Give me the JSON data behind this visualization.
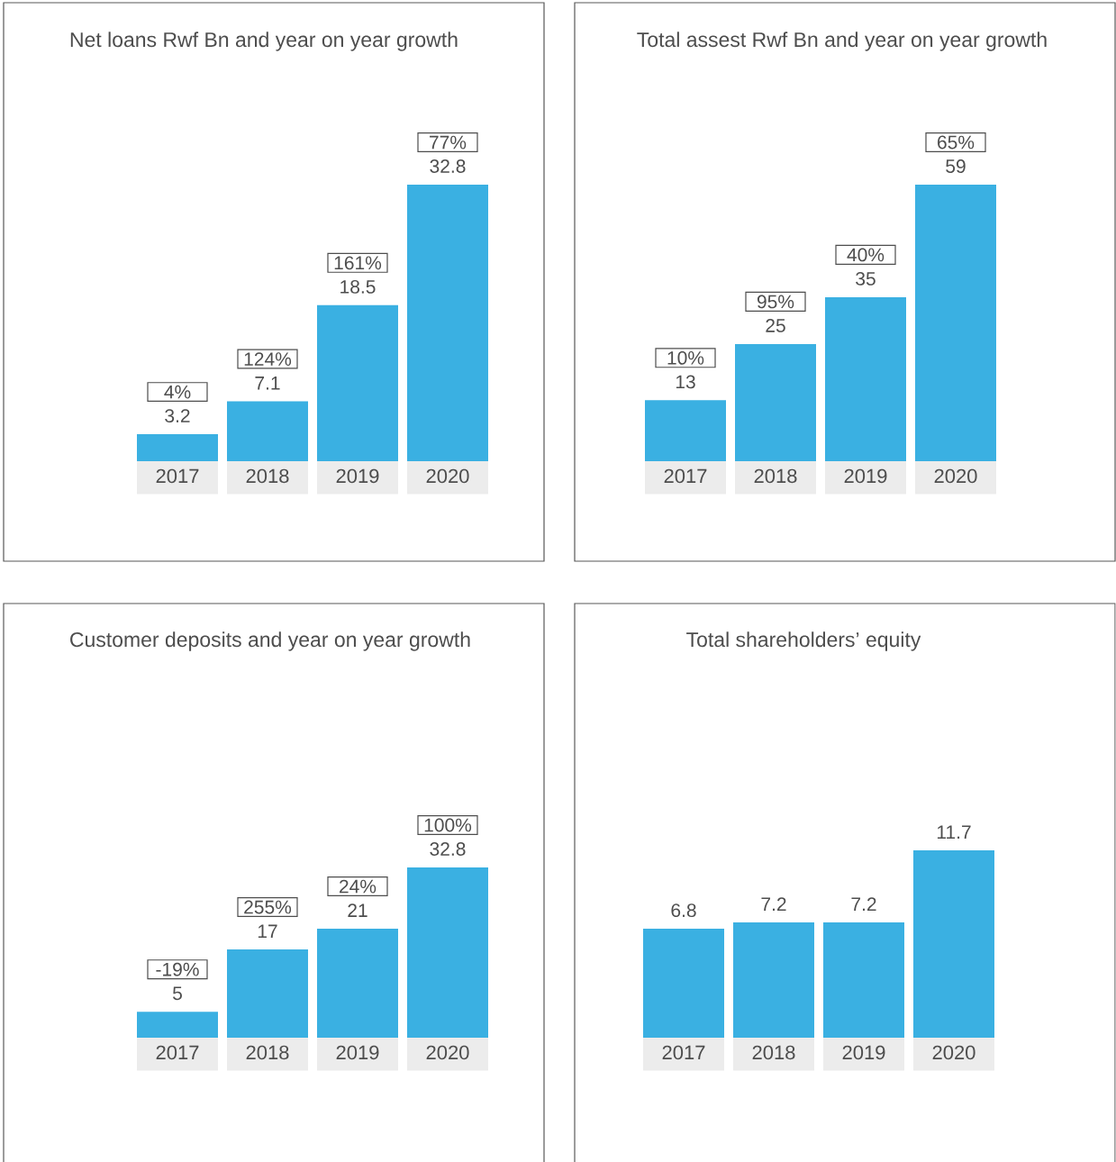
{
  "chart_data": [
    {
      "type": "bar",
      "title": "Net loans Rwf Bn and year on year growth",
      "categories": [
        "2017",
        "2018",
        "2019",
        "2020"
      ],
      "values": [
        3.2,
        7.1,
        18.5,
        32.8
      ],
      "color": "#3ab0e2",
      "data_labels": true,
      "annotations": [
        {
          "text": "4%",
          "x": "2017",
          "y": 3.2
        },
        {
          "text": "124%",
          "x": "2018",
          "y": 7.1
        },
        {
          "text": "161%",
          "x": "2019",
          "y": 18.5
        },
        {
          "text": "77%",
          "x": "2020",
          "y": 32.8
        }
      ]
    },
    {
      "type": "bar",
      "title": "Total assest Rwf Bn and year on year growth",
      "categories": [
        "2017",
        "2018",
        "2019",
        "2020"
      ],
      "values": [
        13,
        25,
        35,
        59
      ],
      "color": "#3ab0e2",
      "data_labels": true,
      "annotations": [
        {
          "text": "10%",
          "x": "2017",
          "y": 13
        },
        {
          "text": "95%",
          "x": "2018",
          "y": 25
        },
        {
          "text": "40%",
          "x": "2019",
          "y": 35
        },
        {
          "text": "65%",
          "x": "2020",
          "y": 59
        }
      ]
    },
    {
      "type": "bar",
      "title": "Customer deposits and year on year growth",
      "categories": [
        "2017",
        "2018",
        "2019",
        "2020"
      ],
      "values": [
        5,
        17,
        21,
        32.8
      ],
      "color": "#3ab0e2",
      "data_labels": true,
      "annotations": [
        {
          "text": "-19%",
          "x": "2017",
          "y": 5
        },
        {
          "text": "255%",
          "x": "2018",
          "y": 17
        },
        {
          "text": "24%",
          "x": "2019",
          "y": 21
        },
        {
          "text": "100%",
          "x": "2020",
          "y": 32.8
        }
      ]
    },
    {
      "type": "bar",
      "title": "Total shareholders’ equity",
      "categories": [
        "2017",
        "2018",
        "2019",
        "2020"
      ],
      "values": [
        6.8,
        7.2,
        7.2,
        11.7
      ],
      "color": "#3ab0e2",
      "data_labels": true
    }
  ]
}
